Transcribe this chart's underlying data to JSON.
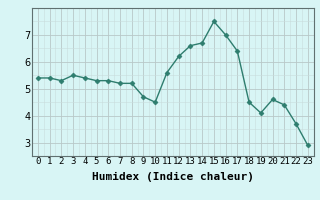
{
  "x": [
    0,
    1,
    2,
    3,
    4,
    5,
    6,
    7,
    8,
    9,
    10,
    11,
    12,
    13,
    14,
    15,
    16,
    17,
    18,
    19,
    20,
    21,
    22,
    23
  ],
  "y": [
    5.4,
    5.4,
    5.3,
    5.5,
    5.4,
    5.3,
    5.3,
    5.2,
    5.2,
    4.7,
    4.5,
    5.6,
    6.2,
    6.6,
    6.7,
    7.5,
    7.0,
    6.4,
    4.5,
    4.1,
    4.6,
    4.4,
    3.7,
    2.9
  ],
  "line_color": "#2e7d6e",
  "marker": "D",
  "marker_size": 2.5,
  "line_width": 1.0,
  "bg_color": "#d8f5f5",
  "grid_major_color": "#b8c8c8",
  "grid_minor_color": "#c8dcdc",
  "xlabel": "Humidex (Indice chaleur)",
  "xlabel_fontsize": 8,
  "xlim": [
    -0.5,
    23.5
  ],
  "ylim": [
    2.5,
    8.0
  ],
  "yticks": [
    3,
    4,
    5,
    6,
    7
  ],
  "xticks": [
    0,
    1,
    2,
    3,
    4,
    5,
    6,
    7,
    8,
    9,
    10,
    11,
    12,
    13,
    14,
    15,
    16,
    17,
    18,
    19,
    20,
    21,
    22,
    23
  ],
  "tick_fontsize": 6.5,
  "xlabel_fontsize_bold": true
}
